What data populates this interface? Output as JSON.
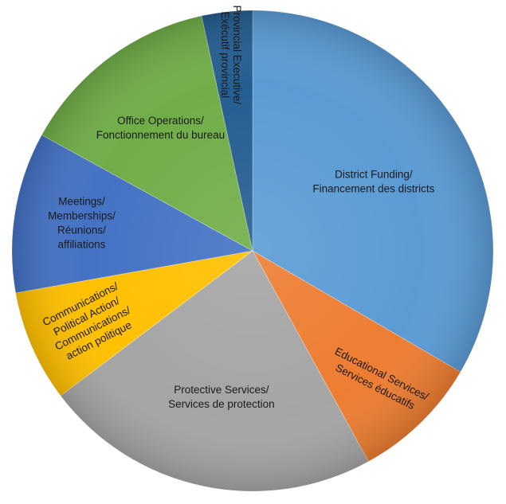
{
  "chart_data": {
    "type": "pie",
    "title": "",
    "start": "top",
    "direction": "clockwise",
    "slices": [
      {
        "name": "District Funding/ Financement des districts",
        "value": 33.4,
        "color": "#5B9BD5",
        "label_lines": [
          "District Funding/",
          "Financement des districts"
        ]
      },
      {
        "name": "Educational Services/ Services éducatifs",
        "value": 8.6,
        "color": "#ED7D31",
        "label_lines": [
          "Educational Services/",
          "Services éducatifs"
        ]
      },
      {
        "name": "Protective Services/ Services de protection",
        "value": 22.7,
        "color": "#A5A5A5",
        "label_lines": [
          "Protective Services/",
          "Services de protection"
        ]
      },
      {
        "name": "Communications/ Political Action/ Communications/ action politique",
        "value": 7.5,
        "color": "#FFC000",
        "label_lines": [
          "Communications/",
          "Political Action/",
          "Communications/",
          "action politique"
        ]
      },
      {
        "name": "Meetings/ Memberships/ Réunions/ affiliations",
        "value": 10.8,
        "color": "#4472C4",
        "label_lines": [
          "Meetings/",
          "Memberships/",
          "Réunions/",
          "affiliations"
        ]
      },
      {
        "name": "Office Operations/ Fonctionnement du bureau",
        "value": 13.6,
        "color": "#70AD47",
        "label_lines": [
          "Office Operations/",
          "Fonctionnement du bureau"
        ]
      },
      {
        "name": "Provincial Executive/ Exécutif provincial",
        "value": 3.4,
        "color": "#255E91",
        "label_lines": [
          "Provincial Executive/",
          "Exécutif provincial"
        ]
      }
    ]
  }
}
